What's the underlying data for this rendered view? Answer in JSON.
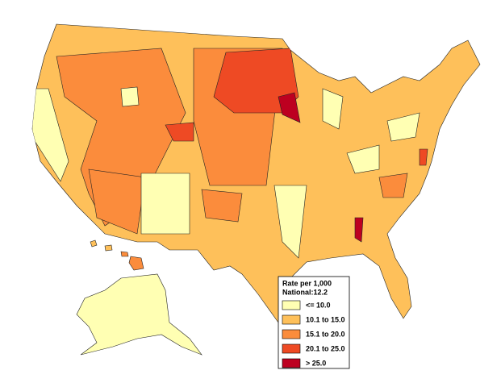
{
  "legend": {
    "title": "Rate per 1,000",
    "subtitle": "National:12.2",
    "items": [
      {
        "label": "<= 10.0",
        "color": "#ffffb3"
      },
      {
        "label": "10.1 to 15.0",
        "color": "#fec05a"
      },
      {
        "label": "15.1 to 20.0",
        "color": "#fb8c3c"
      },
      {
        "label": "20.1 to 25.0",
        "color": "#ee4a24"
      },
      {
        "label": "> 25.0",
        "color": "#bd0020"
      }
    ]
  }
}
